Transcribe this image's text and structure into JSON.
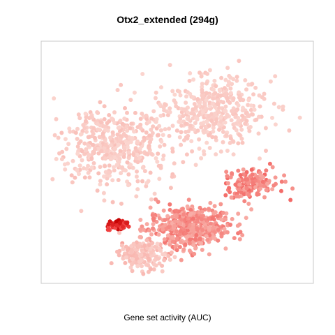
{
  "chart_data": {
    "type": "scatter",
    "title": "Otx2_extended (294g)",
    "xlabel": "Gene set activity (AUC)",
    "ylabel": "",
    "axes_visible": false,
    "frame": true,
    "grid": false,
    "legend": "none",
    "colors": {
      "low": "#fbd9d3",
      "mid": "#f7a19a",
      "high": "#f03b3b",
      "max": "#c40000",
      "frame": "#c8c8c8"
    },
    "clusters": [
      {
        "name": "",
        "region": "upper-right",
        "cx": 0.63,
        "cy": 0.72,
        "sx": 0.19,
        "sy": 0.14,
        "count": 420,
        "activity": [
          0.02,
          0.15
        ]
      },
      {
        "name": "",
        "region": "upper-left",
        "cx": 0.25,
        "cy": 0.57,
        "sx": 0.2,
        "sy": 0.15,
        "count": 480,
        "activity": [
          0.02,
          0.18
        ]
      },
      {
        "name": "",
        "region": "lower-center",
        "cx": 0.54,
        "cy": 0.22,
        "sx": 0.14,
        "sy": 0.08,
        "count": 520,
        "activity": [
          0.3,
          0.6
        ]
      },
      {
        "name": "",
        "region": "right-arm",
        "cx": 0.78,
        "cy": 0.41,
        "sx": 0.1,
        "sy": 0.06,
        "count": 160,
        "activity": [
          0.35,
          0.65
        ]
      },
      {
        "name": "",
        "region": "lower-left",
        "cx": 0.36,
        "cy": 0.1,
        "sx": 0.08,
        "sy": 0.05,
        "count": 160,
        "activity": [
          0.05,
          0.25
        ]
      },
      {
        "name": "",
        "region": "left-hotspot",
        "cx": 0.27,
        "cy": 0.23,
        "sx": 0.035,
        "sy": 0.02,
        "count": 70,
        "activity": [
          0.75,
          1.0
        ]
      }
    ]
  }
}
